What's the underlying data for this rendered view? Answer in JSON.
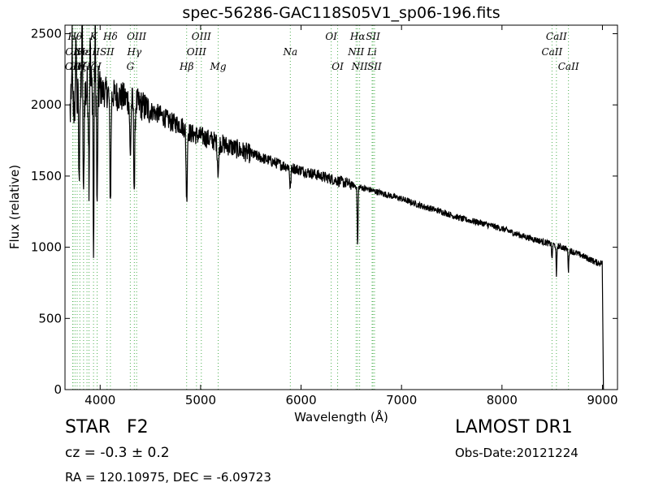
{
  "chart_data": {
    "type": "line",
    "title": "spec-56286-GAC118S05V1_sp06-196.fits",
    "xlabel": "Wavelength (Å)",
    "ylabel": "Flux (relative)",
    "xlim": [
      3650,
      9150
    ],
    "ylim": [
      0,
      2560
    ],
    "xticks": [
      4000,
      5000,
      6000,
      7000,
      8000,
      9000
    ],
    "yticks": [
      0,
      500,
      1000,
      1500,
      2000,
      2500
    ],
    "grid": false,
    "series_color": "#000000",
    "line_marker_color": "#4caf50",
    "continuum": {
      "x": [
        3700,
        3800,
        3900,
        4000,
        4100,
        4200,
        4300,
        4400,
        4500,
        4600,
        4700,
        4800,
        4900,
        5000,
        5200,
        5400,
        5600,
        5800,
        6000,
        6200,
        6400,
        6600,
        6800,
        7000,
        7200,
        7400,
        7600,
        7800,
        8000,
        8200,
        8400,
        8600,
        8800,
        8950
      ],
      "y": [
        1950,
        2050,
        2120,
        2100,
        2080,
        2060,
        2030,
        2000,
        1960,
        1930,
        1880,
        1860,
        1800,
        1780,
        1730,
        1680,
        1630,
        1580,
        1540,
        1500,
        1460,
        1420,
        1380,
        1340,
        1290,
        1250,
        1200,
        1170,
        1130,
        1080,
        1040,
        1000,
        940,
        890
      ]
    },
    "absorption_features": [
      {
        "x": 3790,
        "depth": 650,
        "width": 5
      },
      {
        "x": 3835,
        "depth": 800,
        "width": 6
      },
      {
        "x": 3889,
        "depth": 600,
        "width": 6
      },
      {
        "x": 3934,
        "depth": 1250,
        "width": 5
      },
      {
        "x": 3970,
        "depth": 900,
        "width": 6
      },
      {
        "x": 4102,
        "depth": 750,
        "width": 8
      },
      {
        "x": 4300,
        "depth": 400,
        "width": 8
      },
      {
        "x": 4340,
        "depth": 600,
        "width": 8
      },
      {
        "x": 4861,
        "depth": 500,
        "width": 8
      },
      {
        "x": 5175,
        "depth": 200,
        "width": 10
      },
      {
        "x": 5893,
        "depth": 150,
        "width": 8
      },
      {
        "x": 6563,
        "depth": 420,
        "width": 6
      },
      {
        "x": 8498,
        "depth": 120,
        "width": 5
      },
      {
        "x": 8542,
        "depth": 230,
        "width": 5
      },
      {
        "x": 8662,
        "depth": 150,
        "width": 5
      }
    ],
    "spike_features": [
      {
        "x": 3720,
        "height": 500
      },
      {
        "x": 3760,
        "height": 600
      },
      {
        "x": 3820,
        "height": 700
      },
      {
        "x": 3900,
        "height": 500
      },
      {
        "x": 3950,
        "height": 450
      }
    ],
    "cutoff": {
      "x_start": 9000,
      "x_end": 9010,
      "y_end": 0
    },
    "spectral_lines": [
      {
        "x": 3727,
        "label": "OII",
        "row": 2
      },
      {
        "x": 3730,
        "label": "OII",
        "row": 1
      },
      {
        "x": 3750,
        "label": "Hθ",
        "row": 0
      },
      {
        "x": 3771,
        "label": "Hη",
        "row": 2
      },
      {
        "x": 3798,
        "label": "Hζ",
        "row": 2
      },
      {
        "x": 3835,
        "label": "Hε",
        "row": 1
      },
      {
        "x": 3869,
        "label": "NeIII",
        "row": 1
      },
      {
        "x": 3889,
        "label": "Hζ",
        "row": 2
      },
      {
        "x": 3934,
        "label": "K",
        "row": 0
      },
      {
        "x": 3970,
        "label": "H",
        "row": 2
      },
      {
        "x": 4069,
        "label": "SII",
        "row": 1
      },
      {
        "x": 4102,
        "label": "Hδ",
        "row": 0
      },
      {
        "x": 4300,
        "label": "G",
        "row": 2
      },
      {
        "x": 4340,
        "label": "Hγ",
        "row": 1
      },
      {
        "x": 4363,
        "label": "OIII",
        "row": 0
      },
      {
        "x": 4861,
        "label": "Hβ",
        "row": 2
      },
      {
        "x": 4959,
        "label": "OIII",
        "row": 1
      },
      {
        "x": 5007,
        "label": "OIII",
        "row": 0
      },
      {
        "x": 5175,
        "label": "Mg",
        "row": 2
      },
      {
        "x": 5893,
        "label": "Na",
        "row": 1
      },
      {
        "x": 6300,
        "label": "OI",
        "row": 0
      },
      {
        "x": 6364,
        "label": "OI",
        "row": 2
      },
      {
        "x": 6548,
        "label": "NII",
        "row": 1
      },
      {
        "x": 6563,
        "label": "Hα",
        "row": 0
      },
      {
        "x": 6583,
        "label": "NII",
        "row": 2
      },
      {
        "x": 6707,
        "label": "Li",
        "row": 1
      },
      {
        "x": 6716,
        "label": "SII",
        "row": 0
      },
      {
        "x": 6731,
        "label": "SII",
        "row": 2
      },
      {
        "x": 8498,
        "label": "CaII",
        "row": 1
      },
      {
        "x": 8542,
        "label": "CaII",
        "row": 0
      },
      {
        "x": 8662,
        "label": "CaII",
        "row": 2
      }
    ]
  },
  "footer": {
    "object_class": "STAR",
    "subclass": "F2",
    "redshift": "cz = -0.3  ± 0.2",
    "coords": "RA = 120.10975, DEC = -6.09723",
    "survey": "LAMOST DR1",
    "obs_date": "Obs-Date:20121224"
  }
}
